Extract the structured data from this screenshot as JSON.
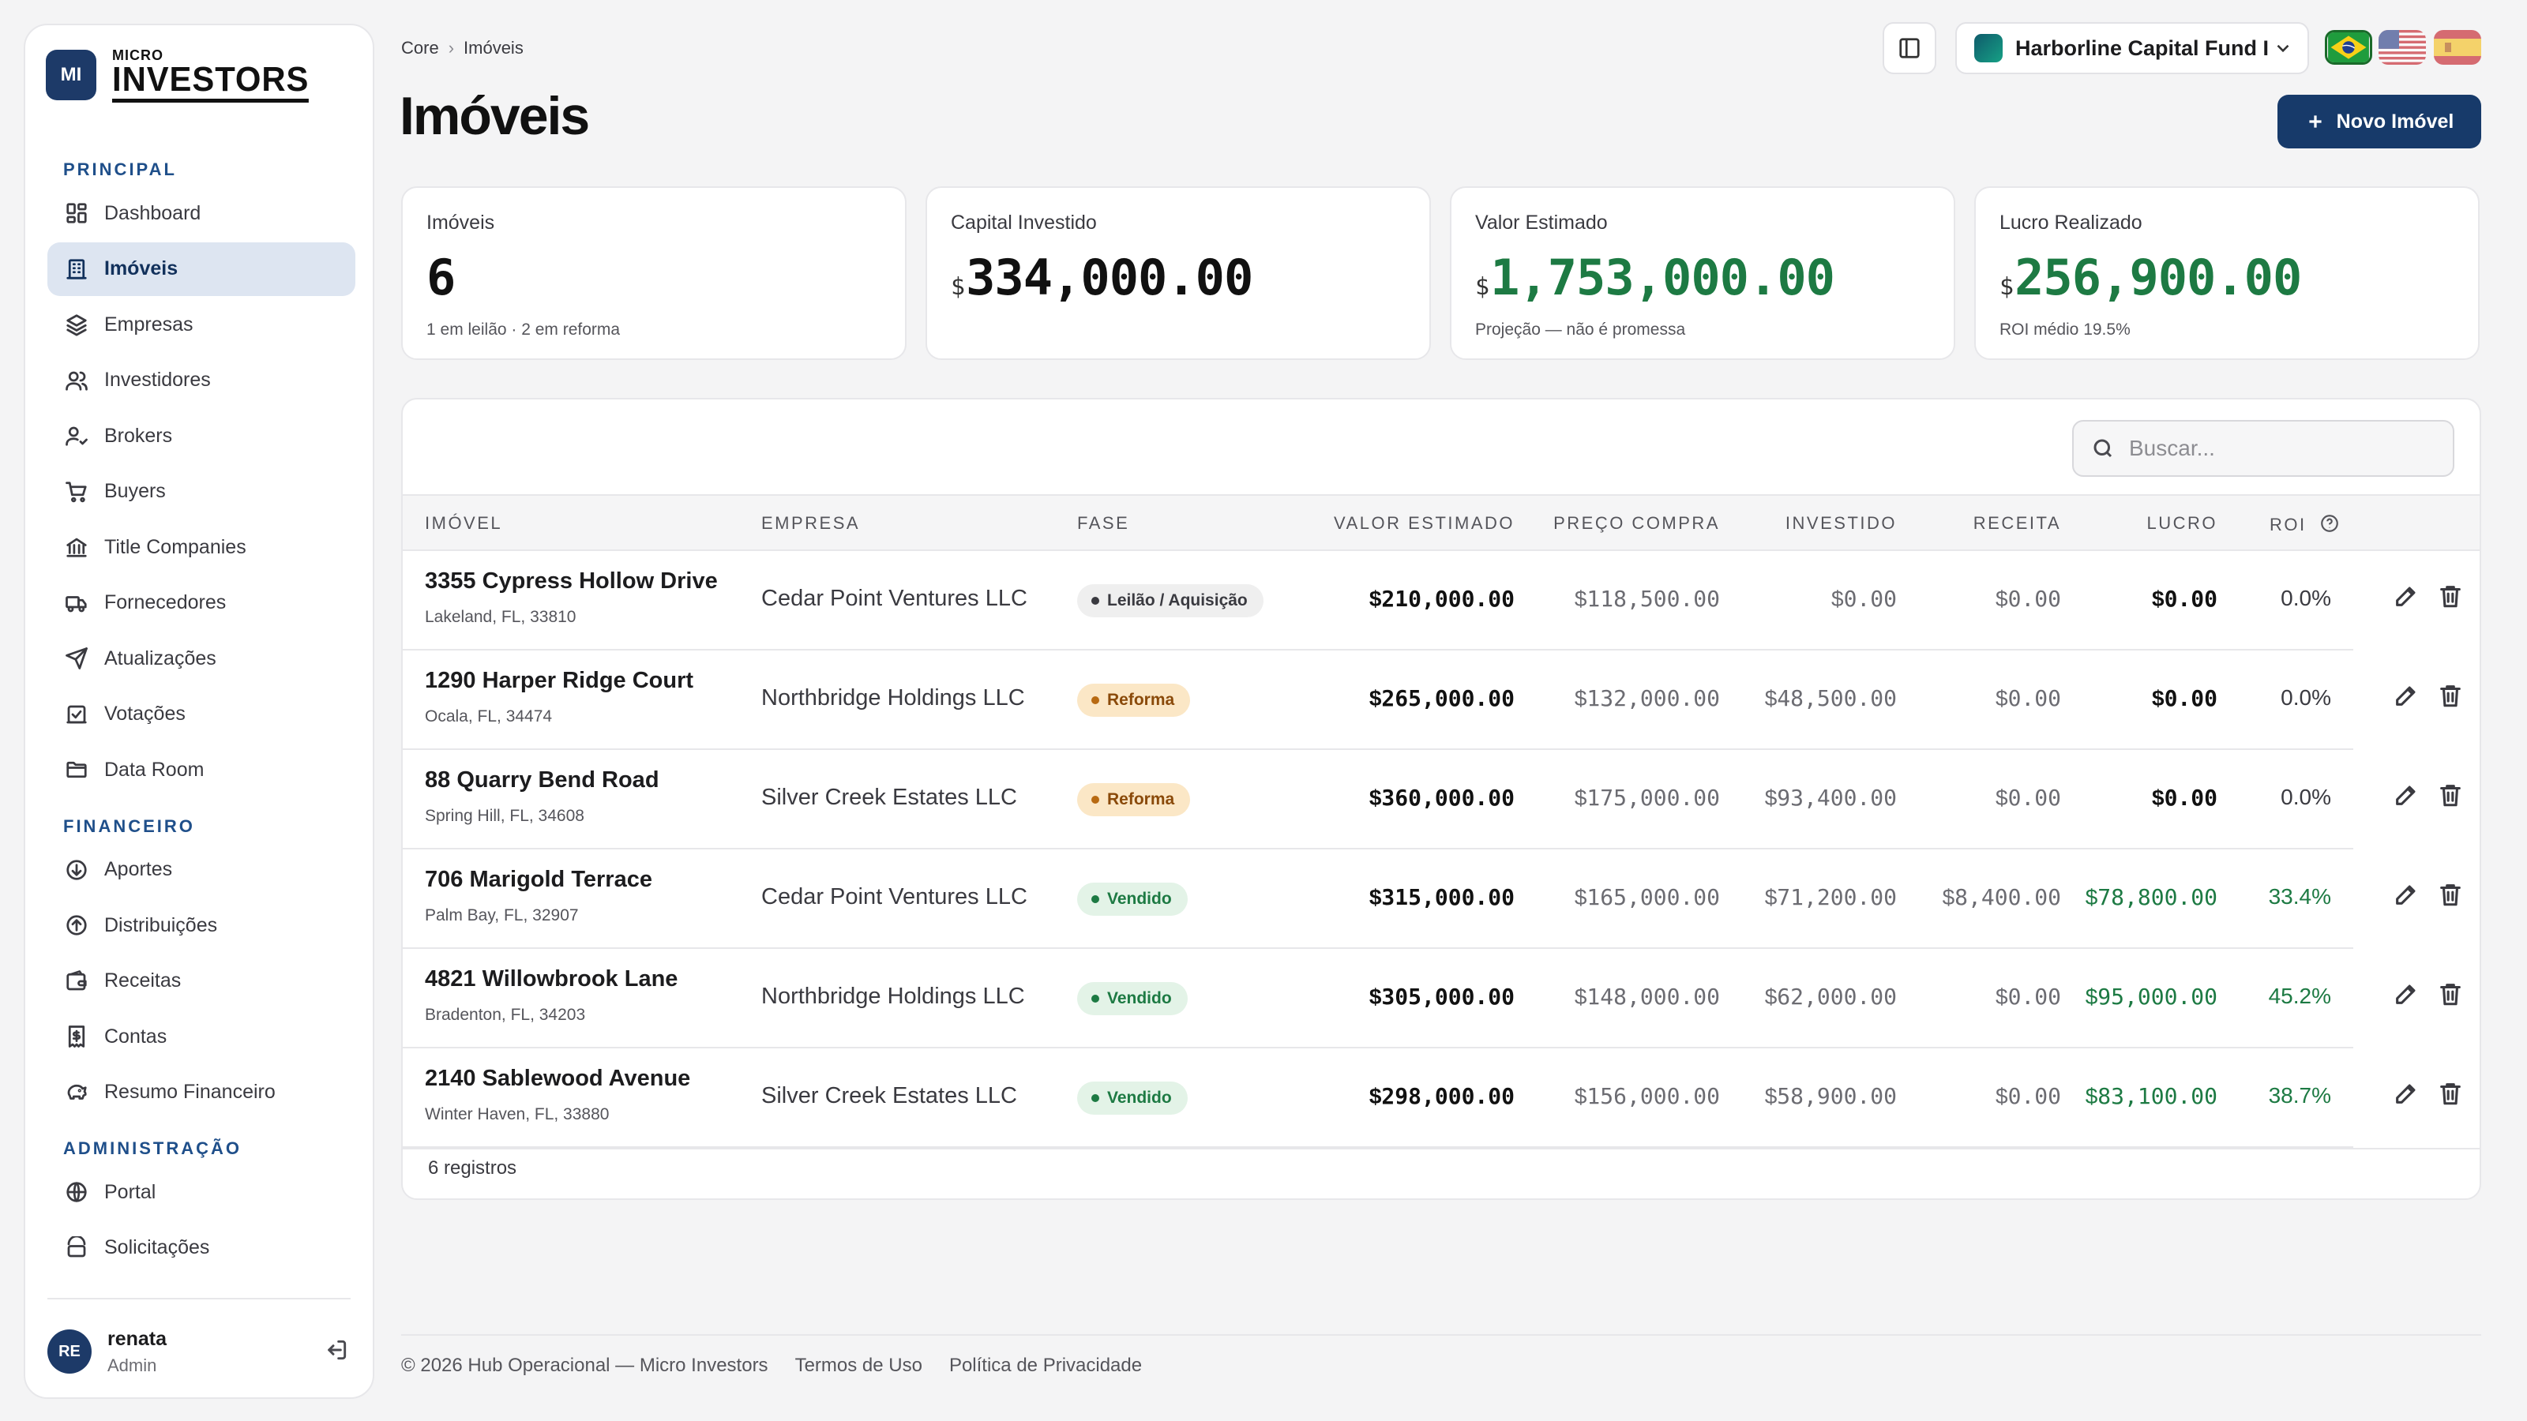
{
  "app": {
    "logo_badge": "MI",
    "logo_micro": "MICRO",
    "logo_investors": "INVESTORS"
  },
  "sidebar": {
    "sections": [
      {
        "title": "PRINCIPAL",
        "items": [
          {
            "label": "Dashboard",
            "icon": "dashboard-icon"
          },
          {
            "label": "Imóveis",
            "icon": "building-icon",
            "active": true
          },
          {
            "label": "Empresas",
            "icon": "layers-icon"
          },
          {
            "label": "Investidores",
            "icon": "users-icon"
          },
          {
            "label": "Brokers",
            "icon": "user-check-icon"
          },
          {
            "label": "Buyers",
            "icon": "cart-icon"
          },
          {
            "label": "Title Companies",
            "icon": "bank-icon"
          },
          {
            "label": "Fornecedores",
            "icon": "truck-icon"
          },
          {
            "label": "Atualizações",
            "icon": "send-icon"
          },
          {
            "label": "Votações",
            "icon": "vote-icon"
          },
          {
            "label": "Data Room",
            "icon": "folder-icon"
          }
        ]
      },
      {
        "title": "FINANCEIRO",
        "items": [
          {
            "label": "Aportes",
            "icon": "arrow-down-circle-icon"
          },
          {
            "label": "Distribuições",
            "icon": "arrow-up-circle-icon"
          },
          {
            "label": "Receitas",
            "icon": "wallet-icon"
          },
          {
            "label": "Contas",
            "icon": "receipt-icon"
          },
          {
            "label": "Resumo Financeiro",
            "icon": "piggy-bank-icon"
          }
        ]
      },
      {
        "title": "ADMINISTRAÇÃO",
        "items": [
          {
            "label": "Portal",
            "icon": "globe-icon"
          },
          {
            "label": "Solicitações",
            "icon": "request-icon"
          }
        ]
      }
    ],
    "user": {
      "initials": "RE",
      "name": "renata",
      "role": "Admin"
    }
  },
  "header": {
    "breadcrumb": [
      "Core",
      "Imóveis"
    ],
    "title": "Imóveis",
    "fund_name": "Harborline Capital Fund I",
    "languages": [
      "pt-BR",
      "en-US",
      "es-ES"
    ],
    "active_language": "pt-BR",
    "new_button": "Novo Imóvel"
  },
  "kpis": {
    "properties": {
      "label": "Imóveis",
      "value": "6",
      "sub": "1 em leilão · 2 em reforma"
    },
    "capital": {
      "label": "Capital Investido",
      "currency": "$",
      "value": "334,000.00"
    },
    "estimated": {
      "label": "Valor Estimado",
      "currency": "$",
      "value": "1,753,000.00",
      "sub": "Projeção — não é promessa"
    },
    "profit": {
      "label": "Lucro Realizado",
      "currency": "$",
      "value": "256,900.00",
      "sub": "ROI médio 19.5%"
    }
  },
  "table": {
    "search_placeholder": "Buscar...",
    "columns": {
      "property": "IMÓVEL",
      "company": "EMPRESA",
      "phase": "FASE",
      "estimated": "VALOR ESTIMADO",
      "purchase": "PREÇO COMPRA",
      "invested": "INVESTIDO",
      "revenue": "RECEITA",
      "profit": "LUCRO",
      "roi": "ROI"
    },
    "rows": [
      {
        "address": "3355 Cypress Hollow Drive",
        "city": "Lakeland, FL, 33810",
        "company": "Cedar Point Ventures LLC",
        "phase": "Leilão / Aquisição",
        "phase_kind": "leilao",
        "estimated": "210,000.00",
        "purchase": "118,500.00",
        "invested": "0.00",
        "revenue": "0.00",
        "profit": "0.00",
        "roi": "0.0%"
      },
      {
        "address": "1290 Harper Ridge Court",
        "city": "Ocala, FL, 34474",
        "company": "Northbridge Holdings LLC",
        "phase": "Reforma",
        "phase_kind": "reforma",
        "estimated": "265,000.00",
        "purchase": "132,000.00",
        "invested": "48,500.00",
        "revenue": "0.00",
        "profit": "0.00",
        "roi": "0.0%"
      },
      {
        "address": "88 Quarry Bend Road",
        "city": "Spring Hill, FL, 34608",
        "company": "Silver Creek Estates LLC",
        "phase": "Reforma",
        "phase_kind": "reforma",
        "estimated": "360,000.00",
        "purchase": "175,000.00",
        "invested": "93,400.00",
        "revenue": "0.00",
        "profit": "0.00",
        "roi": "0.0%"
      },
      {
        "address": "706 Marigold Terrace",
        "city": "Palm Bay, FL, 32907",
        "company": "Cedar Point Ventures LLC",
        "phase": "Vendido",
        "phase_kind": "vendido",
        "estimated": "315,000.00",
        "purchase": "165,000.00",
        "invested": "71,200.00",
        "revenue": "8,400.00",
        "profit": "78,800.00",
        "roi": "33.4%"
      },
      {
        "address": "4821 Willowbrook Lane",
        "city": "Bradenton, FL, 34203",
        "company": "Northbridge Holdings LLC",
        "phase": "Vendido",
        "phase_kind": "vendido",
        "estimated": "305,000.00",
        "purchase": "148,000.00",
        "invested": "62,000.00",
        "revenue": "0.00",
        "profit": "95,000.00",
        "roi": "45.2%"
      },
      {
        "address": "2140 Sablewood Avenue",
        "city": "Winter Haven, FL, 33880",
        "company": "Silver Creek Estates LLC",
        "phase": "Vendido",
        "phase_kind": "vendido",
        "estimated": "298,000.00",
        "purchase": "156,000.00",
        "invested": "58,900.00",
        "revenue": "0.00",
        "profit": "83,100.00",
        "roi": "38.7%"
      }
    ],
    "currency_symbol": "$",
    "footer": "6 registros"
  },
  "footer": {
    "copyright": "© 2026 Hub Operacional — Micro Investors",
    "links": [
      "Termos de Uso",
      "Política de Privacidade"
    ]
  },
  "colors": {
    "primary": "#173a6a",
    "positive": "#1d7a43",
    "reforma_bg": "#fbe7c6",
    "vendido_bg": "#e3f3e7"
  }
}
